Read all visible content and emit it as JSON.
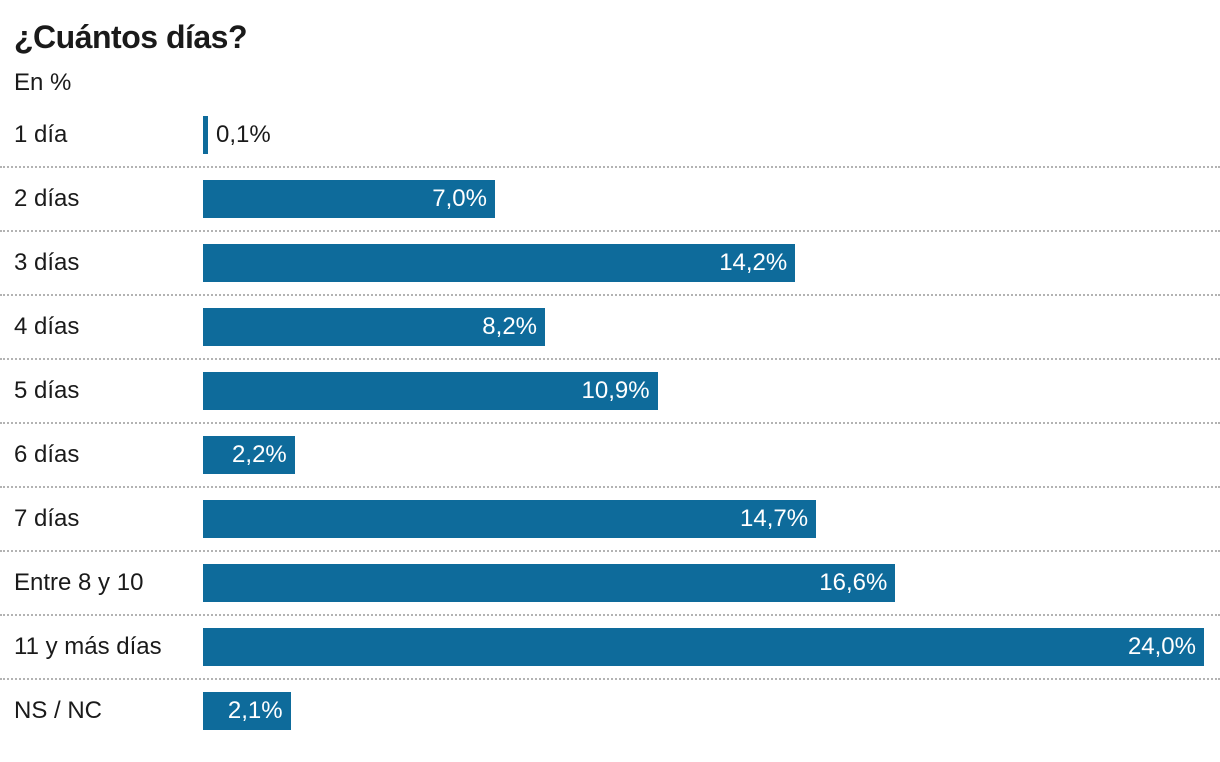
{
  "chart_data": {
    "type": "bar",
    "orientation": "horizontal",
    "title": "¿Cuántos días?",
    "subtitle": "En %",
    "unit": "%",
    "max_value": 24.0,
    "xlim": [
      0,
      24.0
    ],
    "grid": false,
    "legend": false,
    "categories": [
      "1 día",
      "2 días",
      "3 días",
      "4 días",
      "5 días",
      "6 días",
      "7 días",
      "Entre 8 y 10",
      "11 y más días",
      "NS / NC"
    ],
    "values": [
      0.1,
      7.0,
      14.2,
      8.2,
      10.9,
      2.2,
      14.7,
      16.6,
      24.0,
      2.1
    ],
    "value_labels": [
      "0,1%",
      "7,0%",
      "14,2%",
      "8,2%",
      "10,9%",
      "2,2%",
      "14,7%",
      "16,6%",
      "24,0%",
      "2,1%"
    ],
    "value_label_position": "inside-end",
    "outside_label_threshold": 1.5,
    "colors": {
      "bar": "#0e6b9b",
      "text": "#1a1a1a",
      "value_inside": "#ffffff",
      "separator": "#b3b3b3",
      "background": "#ffffff"
    }
  }
}
